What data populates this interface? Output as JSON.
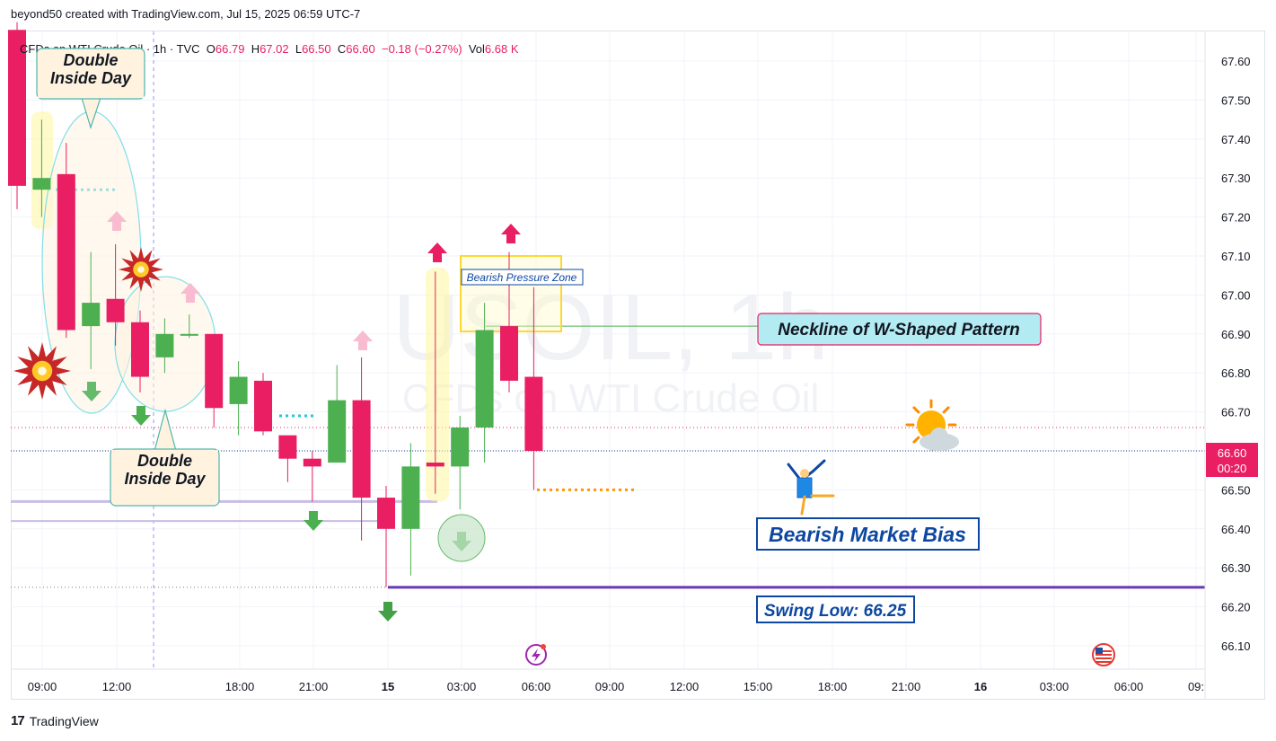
{
  "header": {
    "credit": "beyond50 created with TradingView.com, Jul 15, 2025 06:59 UTC-7",
    "symbol_line": "CFDs on WTI Crude Oil · 1h · TVC",
    "o_label": "O",
    "o_value": "66.79",
    "h_label": "H",
    "h_value": "67.02",
    "l_label": "L",
    "l_value": "66.50",
    "c_label": "C",
    "c_value": "66.60",
    "change": "−0.18 (−0.27%)",
    "vol_label": "Vol",
    "vol_value": "6.68 K"
  },
  "watermark": {
    "line1": "USOIL, 1h",
    "line2": "CFDs on WTI Crude Oil"
  },
  "footer": {
    "brand": "TradingView"
  },
  "price_tag": {
    "price": "66.60",
    "countdown": "00:20"
  },
  "colors": {
    "up": "#4caf50",
    "down": "#e91e63",
    "accent_blue": "#0d47a1",
    "purple": "#673ab7"
  },
  "annotations": {
    "double_inside_day_1": [
      "Double",
      "Inside Day"
    ],
    "double_inside_day_2": [
      "Double",
      "Inside Day"
    ],
    "bearish_pressure_zone": "Bearish Pressure Zone",
    "neckline": "Neckline of W-Shaped Pattern",
    "bias": "Bearish Market Bias",
    "swing_low": "Swing Low: 66.25"
  },
  "icons": [
    "explosion-icon",
    "up-arrow-icon",
    "down-arrow-icon",
    "sun-cloud-icon",
    "acrobat-figure-icon",
    "lightning-event-icon",
    "us-flag-event-icon"
  ],
  "chart_data": {
    "type": "candlestick",
    "ylim": [
      66.05,
      67.67
    ],
    "y_ticks": [
      "67.60",
      "67.50",
      "67.40",
      "67.30",
      "67.20",
      "67.10",
      "67.00",
      "66.90",
      "66.80",
      "66.70",
      "66.60",
      "66.50",
      "66.40",
      "66.30",
      "66.20",
      "66.10"
    ],
    "x_ticks": [
      "09:00",
      "12:00",
      "18:00",
      "21:00",
      "15",
      "03:00",
      "06:00",
      "09:00",
      "12:00",
      "15:00",
      "18:00",
      "21:00",
      "16",
      "03:00",
      "06:00",
      "09:"
    ],
    "candles": [
      {
        "o": 67.68,
        "h": 67.7,
        "l": 67.22,
        "c": 67.28
      },
      {
        "o": 67.27,
        "h": 67.45,
        "l": 67.2,
        "c": 67.3
      },
      {
        "o": 67.31,
        "h": 67.39,
        "l": 66.89,
        "c": 66.91
      },
      {
        "o": 66.92,
        "h": 67.11,
        "l": 66.81,
        "c": 66.98
      },
      {
        "o": 66.99,
        "h": 67.13,
        "l": 66.87,
        "c": 66.93
      },
      {
        "o": 66.93,
        "h": 66.96,
        "l": 66.75,
        "c": 66.79
      },
      {
        "o": 66.84,
        "h": 66.94,
        "l": 66.8,
        "c": 66.9
      },
      {
        "o": 66.9,
        "h": 66.95,
        "l": 66.89,
        "c": 66.9
      },
      {
        "o": 66.9,
        "h": 66.9,
        "l": 66.66,
        "c": 66.71
      },
      {
        "o": 66.72,
        "h": 66.83,
        "l": 66.64,
        "c": 66.79
      },
      {
        "o": 66.78,
        "h": 66.8,
        "l": 66.64,
        "c": 66.65
      },
      {
        "o": 66.64,
        "h": 66.64,
        "l": 66.52,
        "c": 66.58
      },
      {
        "o": 66.58,
        "h": 66.6,
        "l": 66.47,
        "c": 66.56
      },
      {
        "o": 66.57,
        "h": 66.82,
        "l": 66.57,
        "c": 66.73
      },
      {
        "o": 66.73,
        "h": 66.84,
        "l": 66.37,
        "c": 66.48
      },
      {
        "o": 66.48,
        "h": 66.51,
        "l": 66.25,
        "c": 66.4
      },
      {
        "o": 66.4,
        "h": 66.62,
        "l": 66.28,
        "c": 66.56
      },
      {
        "o": 66.57,
        "h": 67.06,
        "l": 66.49,
        "c": 66.56
      },
      {
        "o": 66.56,
        "h": 66.69,
        "l": 66.45,
        "c": 66.66
      },
      {
        "o": 66.66,
        "h": 66.98,
        "l": 66.57,
        "c": 66.91
      },
      {
        "o": 66.92,
        "h": 67.11,
        "l": 66.75,
        "c": 66.78
      },
      {
        "o": 66.79,
        "h": 67.02,
        "l": 66.5,
        "c": 66.6
      }
    ],
    "levels": {
      "last_price": 66.6,
      "neckline": 66.92,
      "swing_low": 66.25,
      "support_1": 66.47,
      "support_2": 66.42
    }
  }
}
